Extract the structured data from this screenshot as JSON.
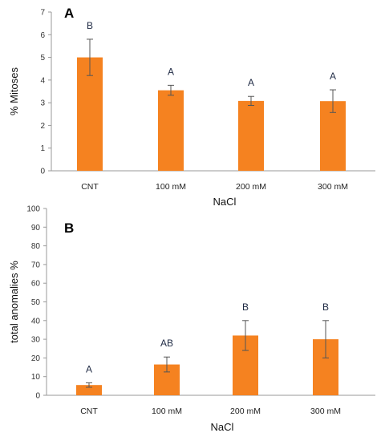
{
  "chart_data": [
    {
      "type": "bar",
      "panel": "A",
      "categories": [
        "CNT",
        "100 mM",
        "200 mM",
        "300 mM"
      ],
      "values": [
        5.0,
        3.55,
        3.08,
        3.07
      ],
      "errors": [
        0.8,
        0.22,
        0.2,
        0.5
      ],
      "labels": [
        "B",
        "A",
        "A",
        "A"
      ],
      "ylim": [
        0,
        7
      ],
      "yticks": [
        "0",
        "1",
        "2",
        "3",
        "4",
        "5",
        "6",
        "7"
      ],
      "ylabel": "% Mitoses",
      "xlabel": "NaCl",
      "grid": false,
      "bar_color": "#f58220",
      "error_color": "#555555"
    },
    {
      "type": "bar",
      "panel": "B",
      "categories": [
        "CNT",
        "100 mM",
        "200 mM",
        "300 mM"
      ],
      "values": [
        5.5,
        16.5,
        32.0,
        30.0
      ],
      "errors": [
        1.2,
        4.0,
        8.0,
        10.0
      ],
      "labels": [
        "A",
        "AB",
        "B",
        "B"
      ],
      "ylim": [
        0,
        100
      ],
      "yticks": [
        "0",
        "10",
        "20",
        "30",
        "40",
        "50",
        "60",
        "70",
        "80",
        "90",
        "100"
      ],
      "ylabel": "total anomalies %",
      "xlabel": "NaCl",
      "grid": false,
      "bar_color": "#f58220",
      "error_color": "#555555"
    }
  ]
}
